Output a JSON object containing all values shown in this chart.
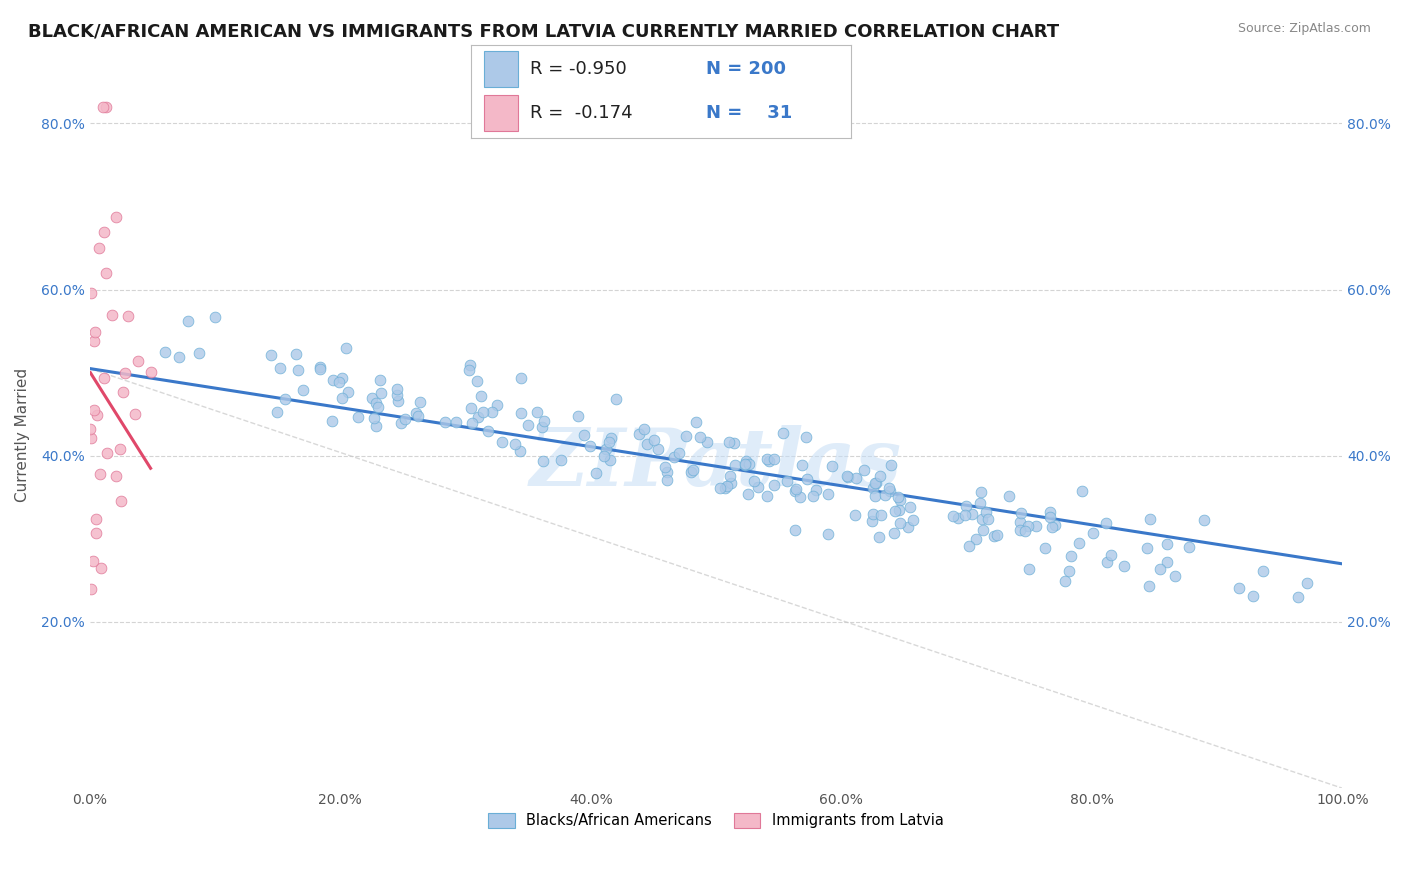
{
  "title": "BLACK/AFRICAN AMERICAN VS IMMIGRANTS FROM LATVIA CURRENTLY MARRIED CORRELATION CHART",
  "source_text": "Source: ZipAtlas.com",
  "ylabel": "Currently Married",
  "x_min": 0.0,
  "x_max": 1.0,
  "y_min": 0.0,
  "y_max": 0.85,
  "y_ticks": [
    0.2,
    0.4,
    0.6,
    0.8
  ],
  "y_tick_labels": [
    "20.0%",
    "40.0%",
    "60.0%",
    "80.0%"
  ],
  "x_ticks": [
    0.0,
    0.2,
    0.4,
    0.6,
    0.8,
    1.0
  ],
  "x_tick_labels": [
    "0.0%",
    "20.0%",
    "40.0%",
    "60.0%",
    "80.0%",
    "100.0%"
  ],
  "blue_color": "#adc9e8",
  "blue_edge_color": "#6aaed6",
  "pink_color": "#f4b8c8",
  "pink_edge_color": "#e07898",
  "trend_blue_color": "#3a78c9",
  "trend_pink_color": "#e0486a",
  "trend_diag_color": "#c8c8c8",
  "legend_R1": "-0.950",
  "legend_N1": "200",
  "legend_R2": "-0.174",
  "legend_N2": "31",
  "watermark": "ZIPatlas",
  "legend_labels": [
    "Blacks/African Americans",
    "Immigrants from Latvia"
  ],
  "title_fontsize": 13,
  "axis_label_fontsize": 11,
  "tick_fontsize": 10,
  "blue_R": -0.95,
  "blue_N": 200,
  "pink_R": -0.174,
  "pink_N": 31
}
